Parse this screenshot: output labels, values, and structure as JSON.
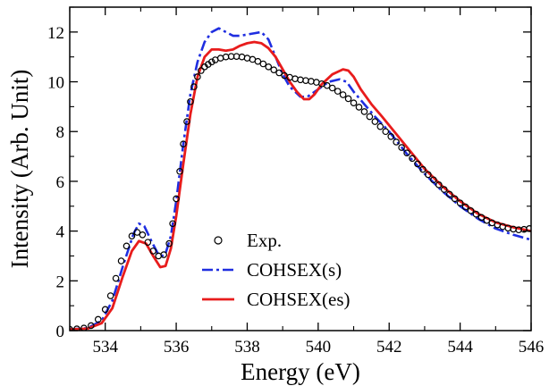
{
  "chart_data": {
    "type": "line",
    "title": "",
    "xlabel": "Energy (eV)",
    "ylabel": "Intensity (Arb. Unit)",
    "xlim": [
      533,
      546
    ],
    "ylim": [
      0,
      13
    ],
    "xticks": [
      534,
      536,
      538,
      540,
      542,
      544,
      546
    ],
    "yticks": [
      0,
      2,
      4,
      6,
      8,
      10,
      12
    ],
    "xtick_labels": [
      "534",
      "536",
      "538",
      "540",
      "542",
      "544",
      "546"
    ],
    "ytick_labels": [
      "0",
      "2",
      "4",
      "6",
      "8",
      "10",
      "12"
    ],
    "grid": false,
    "legend": "bottom-center",
    "series": [
      {
        "name": "Exp.",
        "style": "circles",
        "color": "#000000",
        "x": [
          533.0,
          533.2,
          533.4,
          533.6,
          533.8,
          534.0,
          534.15,
          534.3,
          534.45,
          534.6,
          534.75,
          534.9,
          535.05,
          535.2,
          535.35,
          535.5,
          535.65,
          535.8,
          535.9,
          536.0,
          536.1,
          536.2,
          536.3,
          536.4,
          536.5,
          536.6,
          536.7,
          536.8,
          536.9,
          537.0,
          537.1,
          537.25,
          537.4,
          537.55,
          537.7,
          537.85,
          538.0,
          538.15,
          538.3,
          538.45,
          538.6,
          538.75,
          538.9,
          539.05,
          539.2,
          539.35,
          539.5,
          539.65,
          539.8,
          539.95,
          540.1,
          540.25,
          540.4,
          540.55,
          540.7,
          540.85,
          541.0,
          541.15,
          541.3,
          541.45,
          541.6,
          541.75,
          541.9,
          542.05,
          542.2,
          542.35,
          542.5,
          542.65,
          542.8,
          542.95,
          543.1,
          543.25,
          543.4,
          543.55,
          543.7,
          543.85,
          544.0,
          544.15,
          544.3,
          544.45,
          544.6,
          544.75,
          544.9,
          545.05,
          545.2,
          545.35,
          545.5,
          545.65,
          545.8,
          545.95
        ],
        "y": [
          0.05,
          0.07,
          0.1,
          0.2,
          0.45,
          0.85,
          1.4,
          2.1,
          2.8,
          3.4,
          3.8,
          3.95,
          3.85,
          3.55,
          3.2,
          3.0,
          3.05,
          3.5,
          4.3,
          5.3,
          6.4,
          7.5,
          8.4,
          9.2,
          9.8,
          10.2,
          10.45,
          10.6,
          10.7,
          10.8,
          10.88,
          10.95,
          11.0,
          11.02,
          11.02,
          11.0,
          10.95,
          10.9,
          10.82,
          10.72,
          10.6,
          10.48,
          10.36,
          10.25,
          10.18,
          10.12,
          10.08,
          10.05,
          10.02,
          9.98,
          9.92,
          9.85,
          9.75,
          9.62,
          9.48,
          9.32,
          9.15,
          8.98,
          8.8,
          8.6,
          8.4,
          8.2,
          8.0,
          7.8,
          7.58,
          7.36,
          7.14,
          6.92,
          6.7,
          6.48,
          6.27,
          6.06,
          5.86,
          5.67,
          5.48,
          5.3,
          5.13,
          4.97,
          4.82,
          4.68,
          4.55,
          4.43,
          4.33,
          4.25,
          4.18,
          4.12,
          4.08,
          4.05,
          4.07,
          4.1
        ]
      },
      {
        "name": "COHSEX(s)",
        "style": "dash-dot",
        "color": "#1f2ee0",
        "x": [
          533.0,
          533.5,
          533.9,
          534.2,
          534.5,
          534.8,
          534.95,
          535.1,
          535.3,
          535.5,
          535.6,
          535.7,
          535.85,
          536.0,
          536.2,
          536.4,
          536.6,
          536.8,
          537.0,
          537.2,
          537.4,
          537.6,
          537.8,
          538.0,
          538.2,
          538.4,
          538.6,
          538.8,
          539.0,
          539.2,
          539.5,
          539.7,
          540.0,
          540.3,
          540.6,
          540.8,
          541.0,
          541.3,
          541.6,
          542.0,
          542.5,
          543.0,
          543.5,
          544.0,
          544.5,
          545.0,
          545.5,
          546.0
        ],
        "y": [
          0.05,
          0.1,
          0.4,
          1.2,
          2.6,
          3.9,
          4.3,
          4.2,
          3.6,
          3.05,
          3.0,
          3.1,
          3.8,
          5.2,
          7.5,
          9.5,
          10.8,
          11.6,
          12.0,
          12.15,
          12.0,
          11.85,
          11.85,
          11.9,
          11.95,
          12.0,
          11.7,
          11.0,
          10.3,
          9.8,
          9.4,
          9.4,
          9.7,
          10.0,
          10.1,
          10.0,
          9.6,
          9.1,
          8.6,
          8.0,
          7.1,
          6.3,
          5.6,
          5.0,
          4.5,
          4.1,
          3.85,
          3.65
        ]
      },
      {
        "name": "COHSEX(es)",
        "style": "solid",
        "color": "#e81c1c",
        "x": [
          533.0,
          533.5,
          533.9,
          534.2,
          534.5,
          534.75,
          534.95,
          535.15,
          535.35,
          535.55,
          535.7,
          535.85,
          536.0,
          536.2,
          536.4,
          536.6,
          536.8,
          537.0,
          537.2,
          537.4,
          537.6,
          537.8,
          538.0,
          538.2,
          538.4,
          538.6,
          538.8,
          539.0,
          539.2,
          539.4,
          539.6,
          539.75,
          539.9,
          540.1,
          540.4,
          540.7,
          540.85,
          541.0,
          541.2,
          541.5,
          541.8,
          542.2,
          542.6,
          543.0,
          543.5,
          544.0,
          544.5,
          545.0,
          545.5,
          546.0
        ],
        "y": [
          0.05,
          0.08,
          0.3,
          0.9,
          2.2,
          3.2,
          3.6,
          3.5,
          3.0,
          2.55,
          2.6,
          3.3,
          4.6,
          6.7,
          8.7,
          10.2,
          11.0,
          11.3,
          11.3,
          11.25,
          11.3,
          11.45,
          11.55,
          11.6,
          11.55,
          11.35,
          11.0,
          10.5,
          10.0,
          9.6,
          9.3,
          9.3,
          9.5,
          9.9,
          10.3,
          10.5,
          10.45,
          10.2,
          9.7,
          9.1,
          8.6,
          7.9,
          7.2,
          6.5,
          5.8,
          5.2,
          4.7,
          4.35,
          4.15,
          4.0
        ]
      }
    ]
  }
}
